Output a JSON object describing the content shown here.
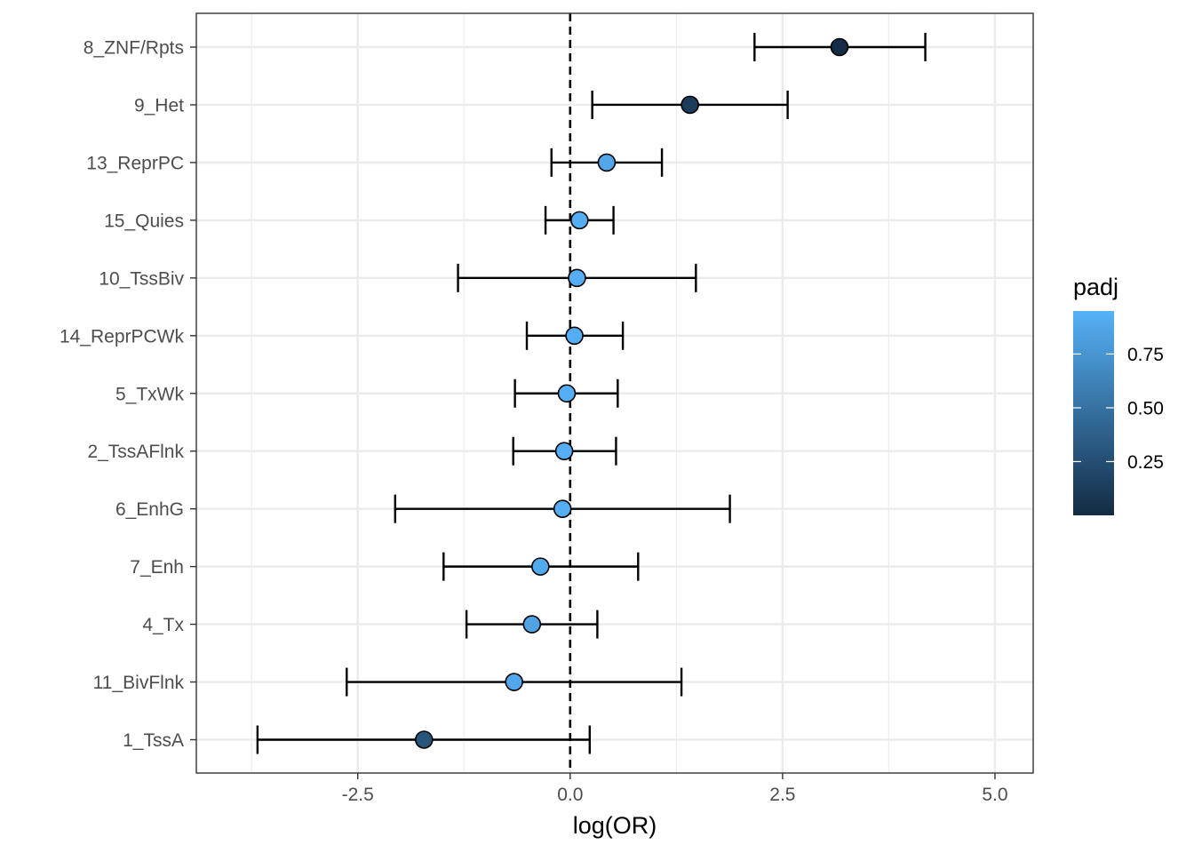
{
  "chart_data": {
    "type": "scatter",
    "subtype": "forest-plot-with-error-bars",
    "title": "",
    "xlabel": "log(OR)",
    "ylabel": "",
    "xlim": [
      -4.4,
      5.45
    ],
    "x_ticks": [
      -2.5,
      0.0,
      2.5,
      5.0
    ],
    "x_tick_labels": [
      "-2.5",
      "0.0",
      "2.5",
      "5.0"
    ],
    "reference_line": {
      "x": 0,
      "style": "dashed"
    },
    "grid": true,
    "points": [
      {
        "label": "8_ZNF/Rpts",
        "estimate": 3.17,
        "lower": 2.17,
        "upper": 4.18,
        "padj": 0.01
      },
      {
        "label": "9_Het",
        "estimate": 1.41,
        "lower": 0.26,
        "upper": 2.56,
        "padj": 0.12
      },
      {
        "label": "13_ReprPC",
        "estimate": 0.43,
        "lower": -0.22,
        "upper": 1.08,
        "padj": 0.88
      },
      {
        "label": "15_Quies",
        "estimate": 0.11,
        "lower": -0.29,
        "upper": 0.51,
        "padj": 0.92
      },
      {
        "label": "10_TssBiv",
        "estimate": 0.08,
        "lower": -1.32,
        "upper": 1.48,
        "padj": 0.93
      },
      {
        "label": "14_ReprPCWk",
        "estimate": 0.05,
        "lower": -0.51,
        "upper": 0.62,
        "padj": 0.93
      },
      {
        "label": "5_TxWk",
        "estimate": -0.04,
        "lower": -0.65,
        "upper": 0.56,
        "padj": 0.93
      },
      {
        "label": "2_TssAFlnk",
        "estimate": -0.07,
        "lower": -0.67,
        "upper": 0.54,
        "padj": 0.93
      },
      {
        "label": "6_EnhG",
        "estimate": -0.09,
        "lower": -2.06,
        "upper": 1.88,
        "padj": 0.93
      },
      {
        "label": "7_Enh",
        "estimate": -0.35,
        "lower": -1.49,
        "upper": 0.8,
        "padj": 0.9
      },
      {
        "label": "4_Tx",
        "estimate": -0.45,
        "lower": -1.22,
        "upper": 0.32,
        "padj": 0.85
      },
      {
        "label": "11_BivFlnk",
        "estimate": -0.66,
        "lower": -2.63,
        "upper": 1.31,
        "padj": 0.88
      },
      {
        "label": "1_TssA",
        "estimate": -1.72,
        "lower": -3.68,
        "upper": 0.23,
        "padj": 0.3
      }
    ],
    "legend": {
      "title": "padj",
      "type": "colorbar",
      "placement": "right",
      "range": [
        0.0,
        0.95
      ],
      "ticks": [
        0.25,
        0.5,
        0.75
      ],
      "tick_labels": [
        "0.25",
        "0.50",
        "0.75"
      ],
      "color_low": "#132B43",
      "color_high": "#56B1F7"
    }
  }
}
